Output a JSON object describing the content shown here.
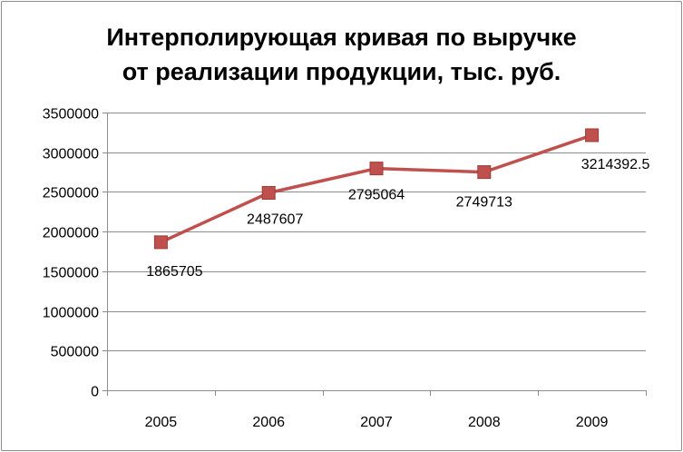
{
  "chart_data": {
    "type": "line",
    "title": "Интерполирующая кривая по выручке от реализации продукции, тыс. руб.",
    "title_lines": [
      "Интерполирующая кривая по выручке",
      "от реализации продукции, тыс. руб."
    ],
    "categories": [
      "2005",
      "2006",
      "2007",
      "2008",
      "2009"
    ],
    "series": [
      {
        "values": [
          1865705,
          2487607,
          2795064,
          2749713,
          3214392.5
        ],
        "labels": [
          "1865705",
          "2487607",
          "2795064",
          "2749713",
          "3214392.5"
        ],
        "color": "#c0504d",
        "marker": "square"
      }
    ],
    "ylim": [
      0,
      3500000
    ],
    "yticks": [
      "0",
      "500000",
      "1000000",
      "1500000",
      "2000000",
      "2500000",
      "3000000",
      "3500000"
    ],
    "xlabel": "",
    "ylabel": "",
    "grid": true,
    "legend": "none"
  }
}
